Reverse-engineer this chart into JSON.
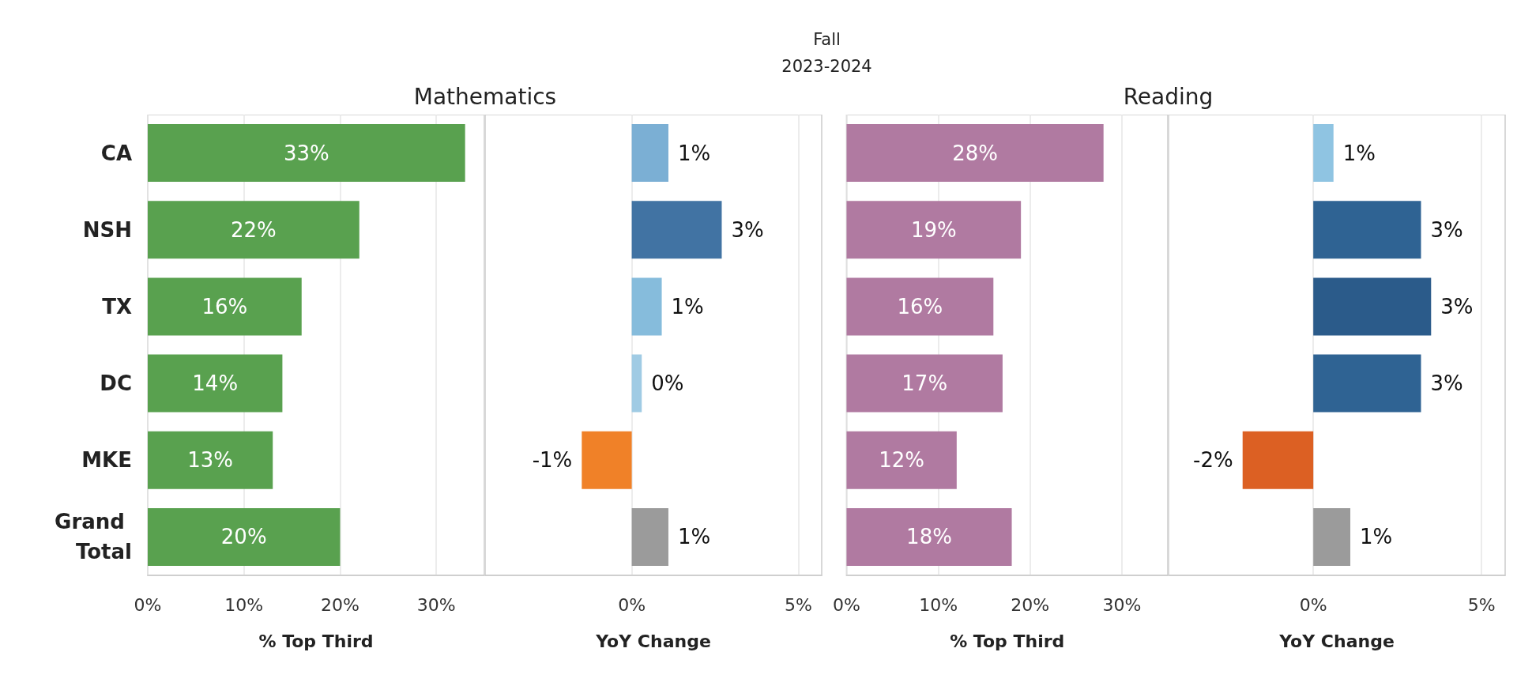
{
  "chart_data": [
    {
      "type": "bar",
      "orientation": "horizontal",
      "title": "Mathematics",
      "xlabel": "% Top Third",
      "annotations": [
        "Fall",
        "2023-2024"
      ],
      "categories": [
        "CA",
        "NSH",
        "TX",
        "DC",
        "MKE",
        "Grand Total"
      ],
      "values": [
        33,
        22,
        16,
        14,
        13,
        20
      ],
      "color": "#59a14f",
      "value_labels": [
        "33%",
        "22%",
        "16%",
        "14%",
        "13%",
        "20%"
      ],
      "xlim": [
        0,
        35
      ],
      "xticks": [
        {
          "value": 0,
          "label": "0%"
        },
        {
          "value": 10,
          "label": "10%"
        },
        {
          "value": 20,
          "label": "20%"
        },
        {
          "value": 30,
          "label": "30%"
        }
      ],
      "grid": "x"
    },
    {
      "type": "bar",
      "orientation": "horizontal",
      "xlabel": "YoY Change",
      "tick_labels": "x",
      "categories": [
        "CA",
        "NSH",
        "TX",
        "DC",
        "MKE",
        "Grand Total"
      ],
      "values": [
        1.1,
        2.7,
        0.9,
        0.3,
        -1.5,
        1.1
      ],
      "colors": [
        "#7bafd4",
        "#4173a3",
        "#86bcdc",
        "#a0cbe4",
        "#f08128",
        "#9b9b9b"
      ],
      "value_labels": [
        "1%",
        "3%",
        "1%",
        "0%",
        "-1%",
        "1%"
      ],
      "xlim": [
        -4.4,
        5.7
      ],
      "xticks": [
        {
          "value": 0,
          "label": "0%"
        },
        {
          "value": 5,
          "label": "5%"
        }
      ],
      "grid": "x"
    },
    {
      "type": "bar",
      "orientation": "horizontal",
      "title": "Reading",
      "xlabel": "% Top Third",
      "tick_labels": "x",
      "categories": [
        "CA",
        "NSH",
        "TX",
        "DC",
        "MKE",
        "Grand Total"
      ],
      "values": [
        28,
        19,
        16,
        17,
        12,
        18
      ],
      "color": "#b07aa1",
      "value_labels": [
        "28%",
        "19%",
        "16%",
        "17%",
        "12%",
        "18%"
      ],
      "xlim": [
        0,
        35
      ],
      "xticks": [
        {
          "value": 0,
          "label": "0%"
        },
        {
          "value": 10,
          "label": "10%"
        },
        {
          "value": 20,
          "label": "20%"
        },
        {
          "value": 30,
          "label": "30%"
        }
      ],
      "grid": "x"
    },
    {
      "type": "bar",
      "orientation": "horizontal",
      "xlabel": "YoY Change",
      "tick_labels": "x",
      "categories": [
        "CA",
        "NSH",
        "TX",
        "DC",
        "MKE",
        "Grand Total"
      ],
      "values": [
        0.6,
        3.2,
        3.5,
        3.2,
        -2.1,
        1.1
      ],
      "colors": [
        "#8fc4e2",
        "#2f6393",
        "#2b5b8a",
        "#2f6393",
        "#dc6023",
        "#9b9b9b"
      ],
      "value_labels": [
        "1%",
        "3%",
        "3%",
        "3%",
        "-2%",
        "1%"
      ],
      "xlim": [
        -4.3,
        5.7
      ],
      "xticks": [
        {
          "value": 0,
          "label": "0%"
        },
        {
          "value": 5,
          "label": "5%"
        }
      ],
      "grid": "x"
    }
  ]
}
